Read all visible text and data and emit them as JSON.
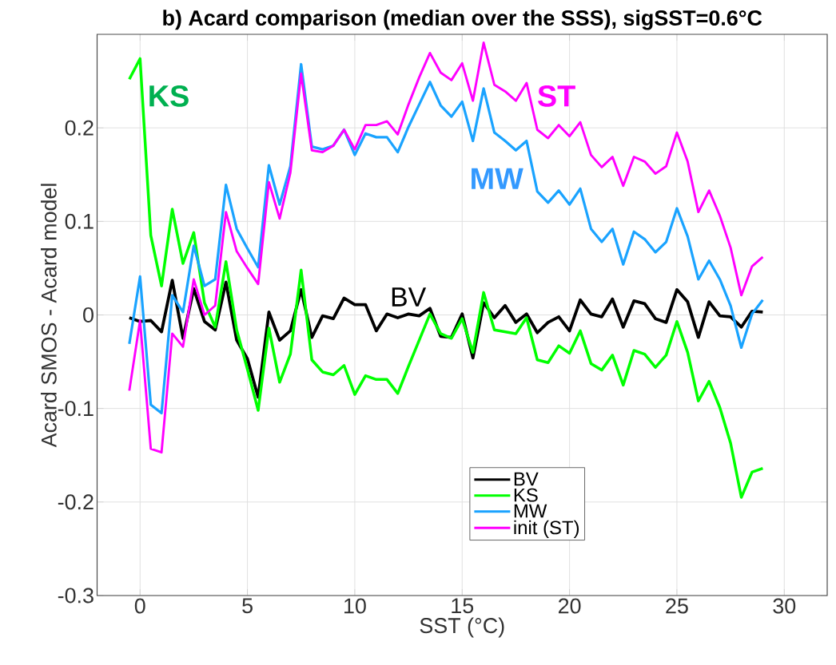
{
  "chart_data": {
    "type": "line",
    "title": "b) Acard comparison (median over the SSS), sigSST=0.6°C",
    "xlabel": "SST (°C)",
    "ylabel": "Acard SMOS - Acard model",
    "x": [
      -0.5,
      0,
      0.5,
      1,
      1.5,
      2,
      2.5,
      3,
      3.5,
      4,
      4.5,
      5,
      5.5,
      6,
      6.5,
      7,
      7.5,
      8,
      8.5,
      9,
      9.5,
      10,
      10.5,
      11,
      11.5,
      12,
      12.5,
      13,
      13.5,
      14,
      14.5,
      15,
      15.5,
      16,
      16.5,
      17,
      17.5,
      18,
      18.5,
      19,
      19.5,
      20,
      20.5,
      21,
      21.5,
      22,
      22.5,
      23,
      23.5,
      24,
      24.5,
      25,
      25.5,
      26,
      26.5,
      27,
      27.5,
      28,
      28.5,
      29
    ],
    "series": [
      {
        "name": "BV",
        "color": "#000000",
        "values": [
          -0.003,
          -0.007,
          -0.006,
          -0.018,
          0.037,
          -0.025,
          0.028,
          -0.007,
          -0.016,
          0.035,
          -0.027,
          -0.047,
          -0.088,
          0.003,
          -0.027,
          -0.017,
          0.027,
          -0.024,
          -0.001,
          -0.004,
          0.018,
          0.011,
          0.011,
          -0.017,
          0.001,
          -0.003,
          0.001,
          -0.001,
          0.007,
          -0.023,
          -0.024,
          0.001,
          -0.046,
          0.013,
          -0.003,
          0.01,
          -0.008,
          0.001,
          -0.019,
          -0.008,
          -0.002,
          -0.017,
          0.016,
          0.001,
          -0.002,
          0.017,
          -0.013,
          0.015,
          0.012,
          -0.004,
          -0.008,
          0.027,
          0.014,
          -0.024,
          0.014,
          -0.001,
          -0.002,
          -0.013,
          0.004,
          0.003
        ]
      },
      {
        "name": "KS",
        "color": "#00ff00",
        "values": [
          0.252,
          0.274,
          0.085,
          0.031,
          0.113,
          0.055,
          0.088,
          0.013,
          -0.013,
          0.057,
          -0.016,
          -0.058,
          -0.102,
          -0.014,
          -0.072,
          -0.042,
          0.048,
          -0.048,
          -0.061,
          -0.064,
          -0.054,
          -0.085,
          -0.065,
          -0.069,
          -0.069,
          -0.084,
          -0.055,
          -0.027,
          0.001,
          -0.02,
          -0.025,
          -0.004,
          -0.04,
          0.024,
          -0.016,
          -0.018,
          -0.02,
          -0.003,
          -0.048,
          -0.051,
          -0.033,
          -0.041,
          -0.017,
          -0.052,
          -0.059,
          -0.043,
          -0.075,
          -0.038,
          -0.042,
          -0.056,
          -0.043,
          -0.007,
          -0.04,
          -0.092,
          -0.071,
          -0.099,
          -0.137,
          -0.195,
          -0.168,
          -0.164
        ]
      },
      {
        "name": "MW",
        "color": "#1aa3ff",
        "values": [
          -0.031,
          0.041,
          -0.096,
          -0.105,
          0.021,
          0.003,
          0.074,
          0.031,
          0.038,
          0.139,
          0.092,
          0.071,
          0.051,
          0.16,
          0.118,
          0.159,
          0.268,
          0.18,
          0.177,
          0.181,
          0.198,
          0.171,
          0.194,
          0.19,
          0.19,
          0.174,
          0.201,
          0.225,
          0.249,
          0.224,
          0.212,
          0.228,
          0.186,
          0.242,
          0.195,
          0.186,
          0.176,
          0.186,
          0.132,
          0.12,
          0.133,
          0.118,
          0.135,
          0.092,
          0.078,
          0.092,
          0.054,
          0.089,
          0.081,
          0.067,
          0.078,
          0.114,
          0.084,
          0.038,
          0.058,
          0.038,
          0.01,
          -0.035,
          0.001,
          0.016
        ]
      },
      {
        "name": "init (ST)",
        "color": "#ff00ff",
        "values": [
          -0.081,
          -0.006,
          -0.143,
          -0.147,
          -0.02,
          -0.034,
          0.038,
          0.0,
          0.01,
          0.11,
          0.068,
          0.05,
          0.033,
          0.142,
          0.103,
          0.152,
          0.258,
          0.176,
          0.174,
          0.181,
          0.198,
          0.177,
          0.203,
          0.203,
          0.207,
          0.193,
          0.225,
          0.254,
          0.28,
          0.259,
          0.251,
          0.269,
          0.229,
          0.291,
          0.246,
          0.239,
          0.229,
          0.248,
          0.198,
          0.189,
          0.203,
          0.191,
          0.206,
          0.171,
          0.158,
          0.169,
          0.138,
          0.169,
          0.164,
          0.151,
          0.159,
          0.195,
          0.164,
          0.11,
          0.133,
          0.106,
          0.072,
          0.021,
          0.052,
          0.062
        ]
      }
    ],
    "annotations": [
      "KS",
      "ST",
      "MW",
      "BV"
    ],
    "xlim": [
      -2,
      32
    ],
    "ylim": [
      -0.3,
      0.3
    ],
    "xticks": [
      0,
      5,
      10,
      15,
      20,
      25,
      30
    ],
    "yticks": [
      -0.3,
      -0.2,
      -0.1,
      0,
      0.1,
      0.2
    ],
    "grid": true,
    "legend": "bottom",
    "line_style": "solid",
    "marker": "none"
  }
}
